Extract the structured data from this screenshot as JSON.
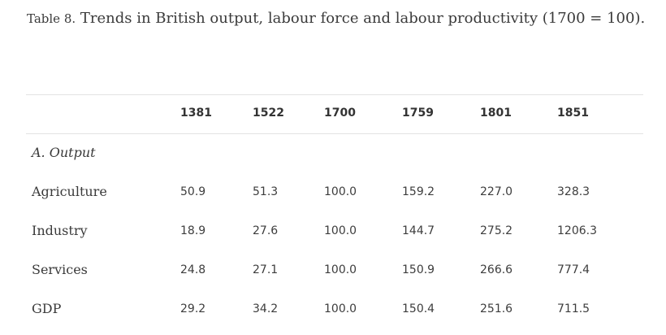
{
  "caption": {
    "label": "Table 8.",
    "text": "Trends in British output, labour force and labour productivity (1700 = 100)."
  },
  "table": {
    "columns": [
      "1381",
      "1522",
      "1700",
      "1759",
      "1801",
      "1851"
    ],
    "section": "A. Output",
    "rows": [
      {
        "label": "Agriculture",
        "values": [
          "50.9",
          "51.3",
          "100.0",
          "159.2",
          "227.0",
          "328.3"
        ]
      },
      {
        "label": "Industry",
        "values": [
          "18.9",
          "27.6",
          "100.0",
          "144.7",
          "275.2",
          "1206.3"
        ]
      },
      {
        "label": "Services",
        "values": [
          "24.8",
          "27.1",
          "100.0",
          "150.9",
          "266.6",
          "777.4"
        ]
      },
      {
        "label": "GDP",
        "values": [
          "29.2",
          "34.2",
          "100.0",
          "150.4",
          "251.6",
          "711.5"
        ]
      }
    ]
  }
}
